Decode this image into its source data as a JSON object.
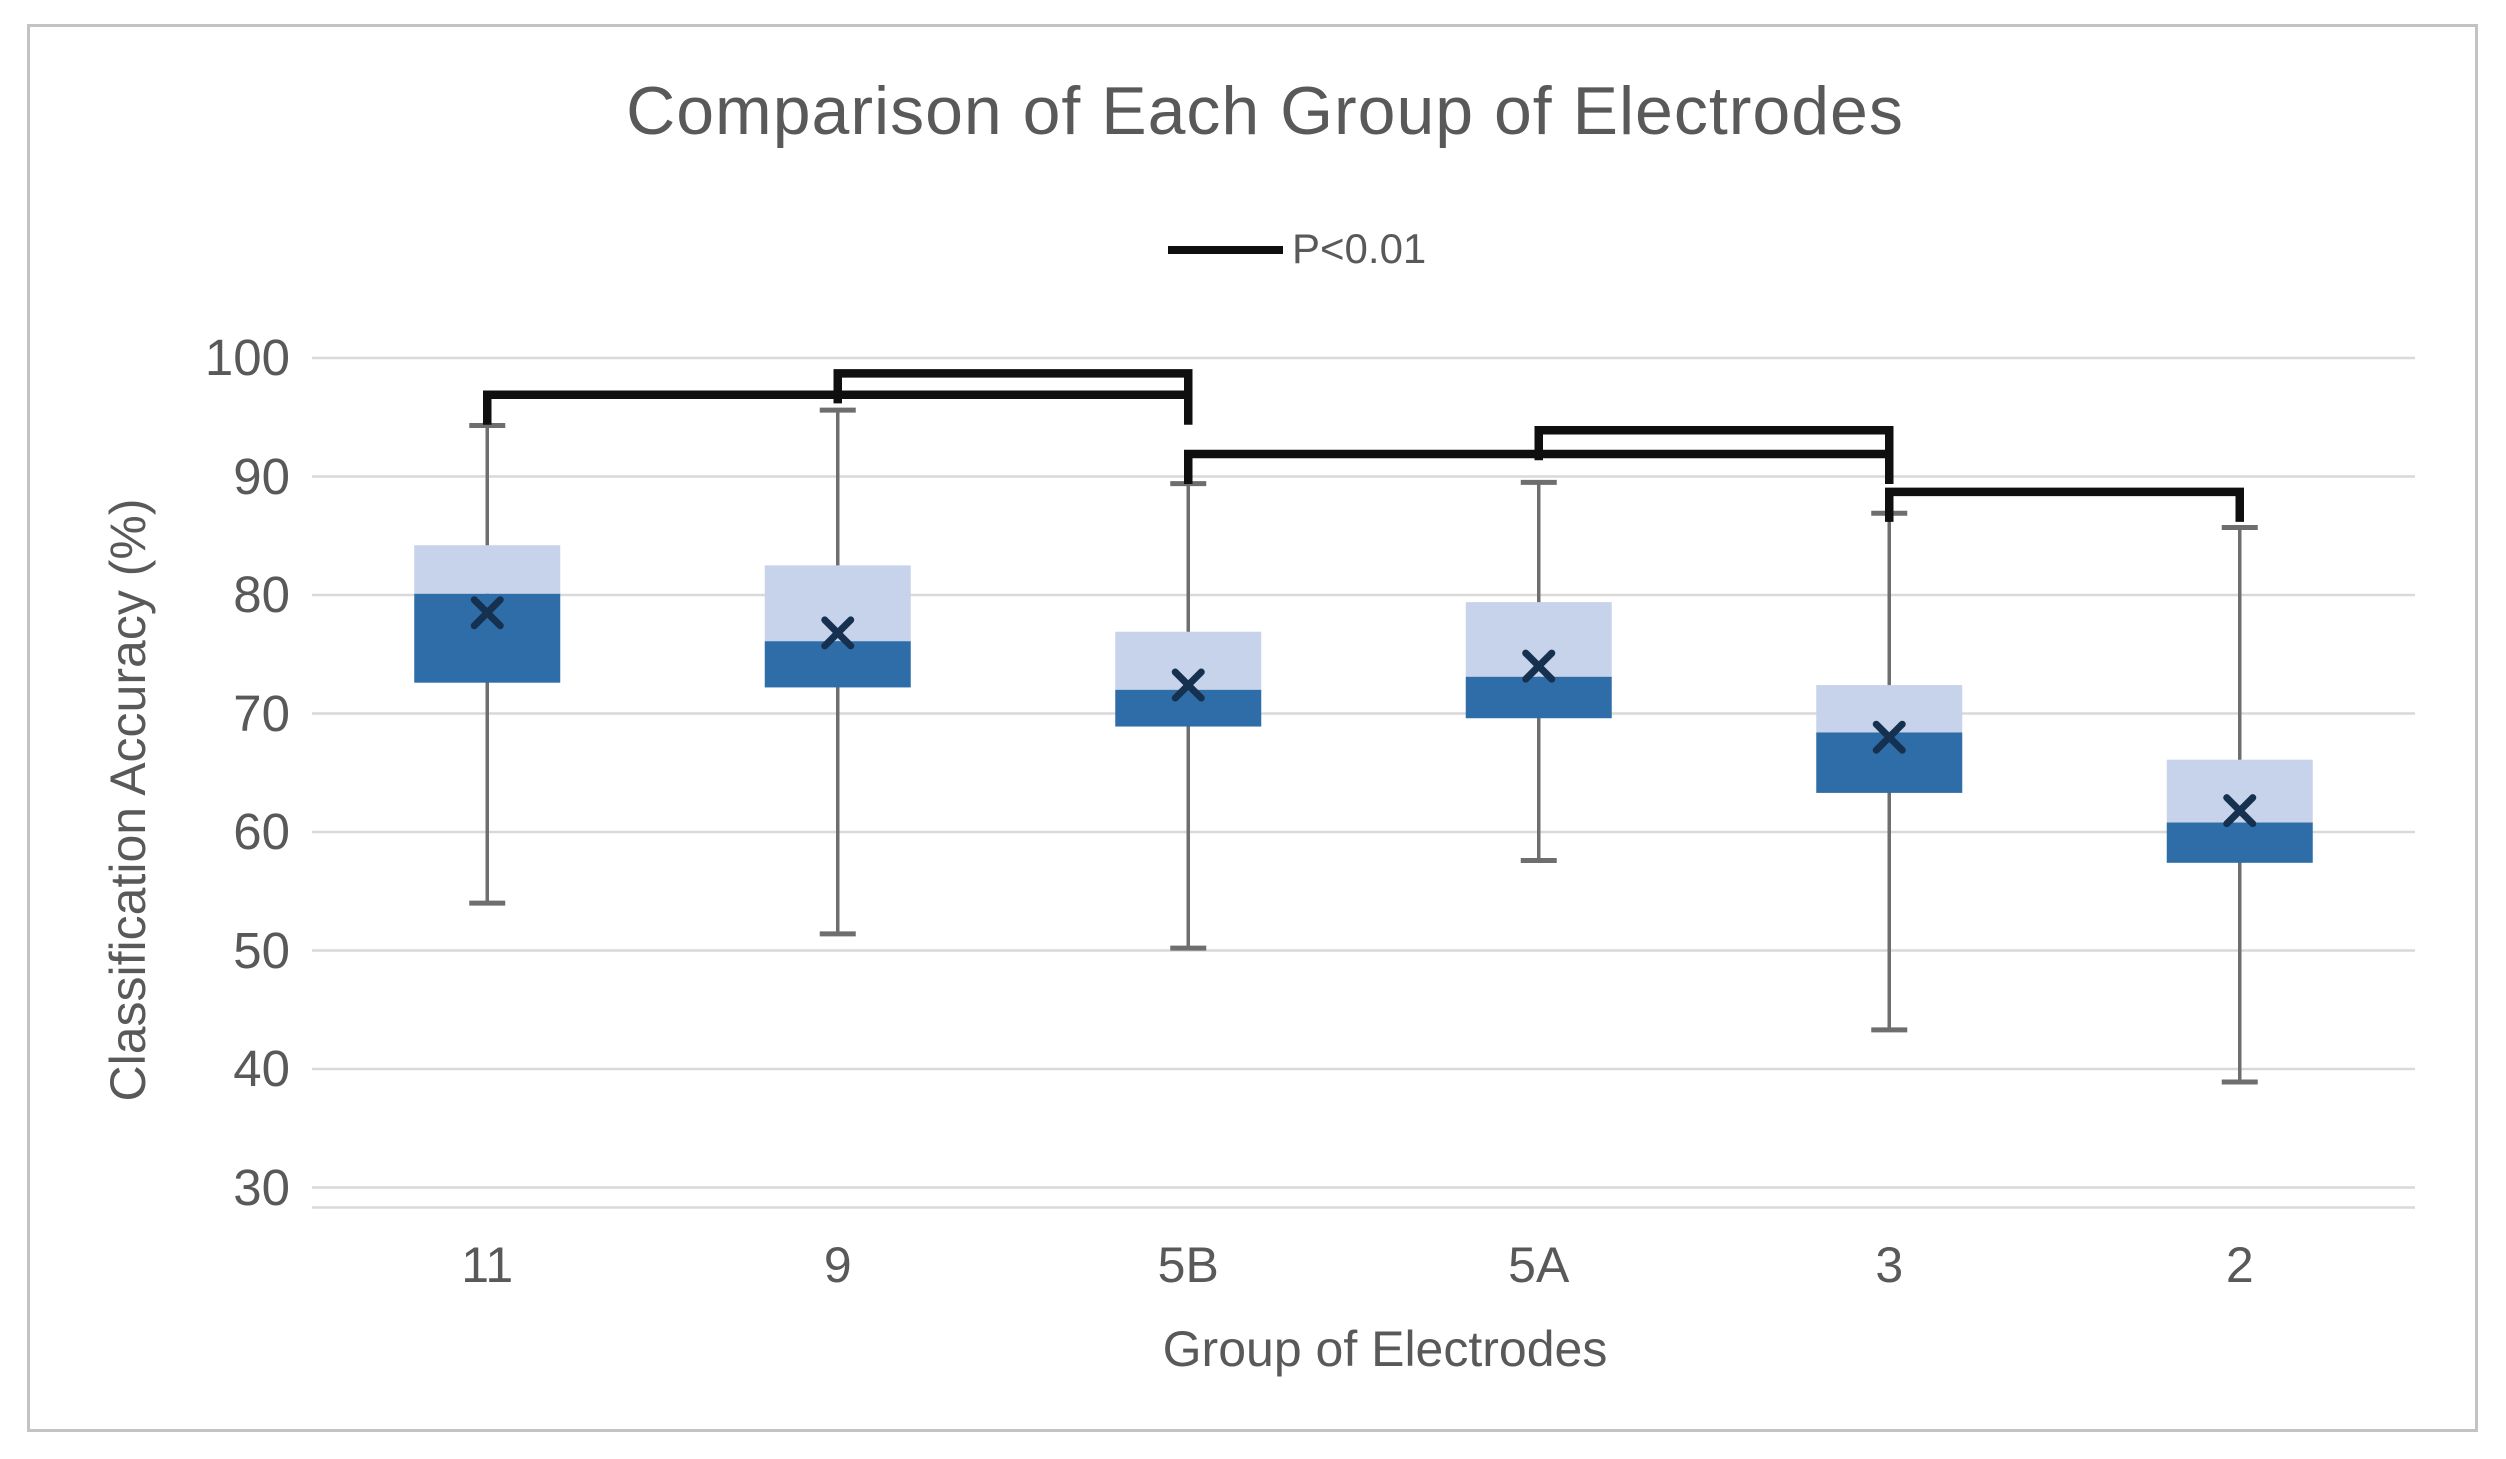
{
  "chart_data": {
    "type": "box",
    "title": "Comparison of Each Group of Electrodes",
    "xlabel": "Group of Electrodes",
    "ylabel": "Classification Accuracy (%)",
    "legend": {
      "label": "P<0.01",
      "swatch": "black-line",
      "position": "top-center"
    },
    "y_axis": {
      "min": 30,
      "max": 100,
      "step": 10,
      "ticks": [
        100,
        90,
        80,
        70,
        60,
        50,
        40,
        30
      ],
      "grid": true
    },
    "categories": [
      "11",
      "9",
      "5B",
      "5A",
      "3",
      "2"
    ],
    "boxes": [
      {
        "group": "11",
        "whisker_low": 54.0,
        "q1": 72.6,
        "median": 80.1,
        "q3": 84.2,
        "whisker_high": 94.3,
        "mean": 78.5
      },
      {
        "group": "9",
        "whisker_low": 51.4,
        "q1": 72.2,
        "median": 76.1,
        "q3": 82.5,
        "whisker_high": 95.6,
        "mean": 76.8
      },
      {
        "group": "5B",
        "whisker_low": 50.2,
        "q1": 68.9,
        "median": 72.0,
        "q3": 76.9,
        "whisker_high": 89.4,
        "mean": 72.4
      },
      {
        "group": "5A",
        "whisker_low": 57.6,
        "q1": 69.6,
        "median": 73.1,
        "q3": 79.4,
        "whisker_high": 89.5,
        "mean": 74.0
      },
      {
        "group": "3",
        "whisker_low": 43.3,
        "q1": 63.3,
        "median": 68.4,
        "q3": 72.4,
        "whisker_high": 86.9,
        "mean": 68.0
      },
      {
        "group": "2",
        "whisker_low": 38.9,
        "q1": 57.4,
        "median": 60.8,
        "q3": 66.1,
        "whisker_high": 85.7,
        "mean": 61.8
      }
    ],
    "significance_brackets": [
      {
        "from": "9",
        "to": "5B",
        "level": 98.7,
        "p": "P<0.01"
      },
      {
        "from": "11",
        "to": "5B",
        "level": 96.9,
        "p": "P<0.01"
      },
      {
        "from": "5A",
        "to": "3",
        "level": 93.9,
        "p": "P<0.01"
      },
      {
        "from": "5B",
        "to": "3",
        "level": 91.9,
        "p": "P<0.01"
      },
      {
        "from": "3",
        "to": "2",
        "level": 88.7,
        "p": "P<0.01"
      }
    ],
    "colors": {
      "box_upper_fill": "#c7d3ea",
      "box_lower_fill": "#2e6da8",
      "mean_marker": "#16304f",
      "whisker": "#6e6e6e",
      "gridline": "#d9d9d9",
      "bracket": "#0f0f0f",
      "text": "#595959",
      "figure_border": "#c3c3c3",
      "background": "#ffffff"
    }
  }
}
